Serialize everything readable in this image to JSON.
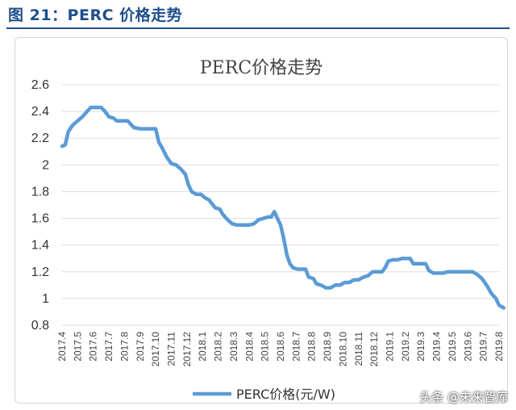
{
  "figure_title": "图 21：PERC 价格走势",
  "watermark": "头条 @未来智库",
  "colors": {
    "series": "#5b9bd5",
    "header": "#1f4e8c",
    "grid": "#dddddd"
  },
  "chart_data": {
    "type": "line",
    "title": "PERC价格走势",
    "xlabel": "",
    "ylabel": "",
    "ylim": [
      0.8,
      2.6
    ],
    "yticks": [
      "2.6",
      "2.4",
      "2.2",
      "2",
      "1.8",
      "1.6",
      "1.4",
      "1.2",
      "1",
      "0.8"
    ],
    "x_tick_labels": [
      "2017.4",
      "2017.5",
      "2017.6",
      "2017.7",
      "2017.8",
      "2017.9",
      "2017.10",
      "2017.11",
      "2017.12",
      "2018.1",
      "2018.2",
      "2018.3",
      "2018.4",
      "2018.5",
      "2018.6",
      "2018.7",
      "2018.8",
      "2018.9",
      "2018.10",
      "2018.11",
      "2018.12",
      "2019.1",
      "2019.2",
      "2019.3",
      "2019.4",
      "2019.5",
      "2019.6",
      "2019.7",
      "2019.8"
    ],
    "grid": true,
    "legend_position": "bottom",
    "series": [
      {
        "name": "PERC价格(元/W)",
        "points": [
          [
            0.0,
            2.14
          ],
          [
            0.2,
            2.15
          ],
          [
            0.4,
            2.25
          ],
          [
            0.7,
            2.3
          ],
          [
            1.0,
            2.33
          ],
          [
            1.3,
            2.36
          ],
          [
            1.6,
            2.4
          ],
          [
            1.85,
            2.43
          ],
          [
            2.2,
            2.43
          ],
          [
            2.5,
            2.43
          ],
          [
            2.75,
            2.4
          ],
          [
            3.0,
            2.36
          ],
          [
            3.3,
            2.35
          ],
          [
            3.5,
            2.33
          ],
          [
            3.8,
            2.33
          ],
          [
            4.2,
            2.33
          ],
          [
            4.6,
            2.28
          ],
          [
            5.0,
            2.27
          ],
          [
            5.5,
            2.27
          ],
          [
            6.0,
            2.27
          ],
          [
            6.2,
            2.17
          ],
          [
            6.4,
            2.13
          ],
          [
            6.7,
            2.06
          ],
          [
            7.0,
            2.01
          ],
          [
            7.3,
            2.0
          ],
          [
            7.6,
            1.97
          ],
          [
            7.9,
            1.93
          ],
          [
            8.1,
            1.85
          ],
          [
            8.3,
            1.8
          ],
          [
            8.6,
            1.78
          ],
          [
            8.9,
            1.78
          ],
          [
            9.2,
            1.75
          ],
          [
            9.4,
            1.74
          ],
          [
            9.6,
            1.71
          ],
          [
            9.8,
            1.68
          ],
          [
            10.1,
            1.67
          ],
          [
            10.3,
            1.63
          ],
          [
            10.6,
            1.59
          ],
          [
            10.9,
            1.56
          ],
          [
            11.2,
            1.55
          ],
          [
            11.6,
            1.55
          ],
          [
            12.0,
            1.55
          ],
          [
            12.3,
            1.56
          ],
          [
            12.6,
            1.59
          ],
          [
            12.9,
            1.6
          ],
          [
            13.2,
            1.61
          ],
          [
            13.4,
            1.61
          ],
          [
            13.6,
            1.65
          ],
          [
            13.8,
            1.6
          ],
          [
            14.0,
            1.55
          ],
          [
            14.2,
            1.45
          ],
          [
            14.4,
            1.33
          ],
          [
            14.6,
            1.26
          ],
          [
            14.8,
            1.23
          ],
          [
            15.1,
            1.22
          ],
          [
            15.4,
            1.22
          ],
          [
            15.6,
            1.22
          ],
          [
            15.8,
            1.16
          ],
          [
            16.1,
            1.15
          ],
          [
            16.3,
            1.11
          ],
          [
            16.6,
            1.1
          ],
          [
            16.9,
            1.08
          ],
          [
            17.2,
            1.08
          ],
          [
            17.5,
            1.1
          ],
          [
            17.8,
            1.1
          ],
          [
            18.1,
            1.12
          ],
          [
            18.4,
            1.12
          ],
          [
            18.7,
            1.14
          ],
          [
            19.0,
            1.14
          ],
          [
            19.3,
            1.16
          ],
          [
            19.6,
            1.17
          ],
          [
            19.9,
            1.2
          ],
          [
            20.2,
            1.2
          ],
          [
            20.5,
            1.2
          ],
          [
            20.7,
            1.23
          ],
          [
            20.9,
            1.28
          ],
          [
            21.2,
            1.29
          ],
          [
            21.5,
            1.29
          ],
          [
            21.8,
            1.3
          ],
          [
            22.1,
            1.3
          ],
          [
            22.3,
            1.3
          ],
          [
            22.5,
            1.26
          ],
          [
            22.8,
            1.26
          ],
          [
            23.1,
            1.26
          ],
          [
            23.3,
            1.26
          ],
          [
            23.5,
            1.21
          ],
          [
            23.8,
            1.19
          ],
          [
            24.1,
            1.19
          ],
          [
            24.4,
            1.19
          ],
          [
            24.7,
            1.2
          ],
          [
            25.0,
            1.2
          ],
          [
            25.5,
            1.2
          ],
          [
            26.0,
            1.2
          ],
          [
            26.3,
            1.2
          ],
          [
            26.6,
            1.18
          ],
          [
            26.9,
            1.15
          ],
          [
            27.2,
            1.1
          ],
          [
            27.5,
            1.04
          ],
          [
            27.8,
            1.0
          ],
          [
            28.0,
            0.95
          ],
          [
            28.3,
            0.93
          ]
        ]
      }
    ]
  }
}
